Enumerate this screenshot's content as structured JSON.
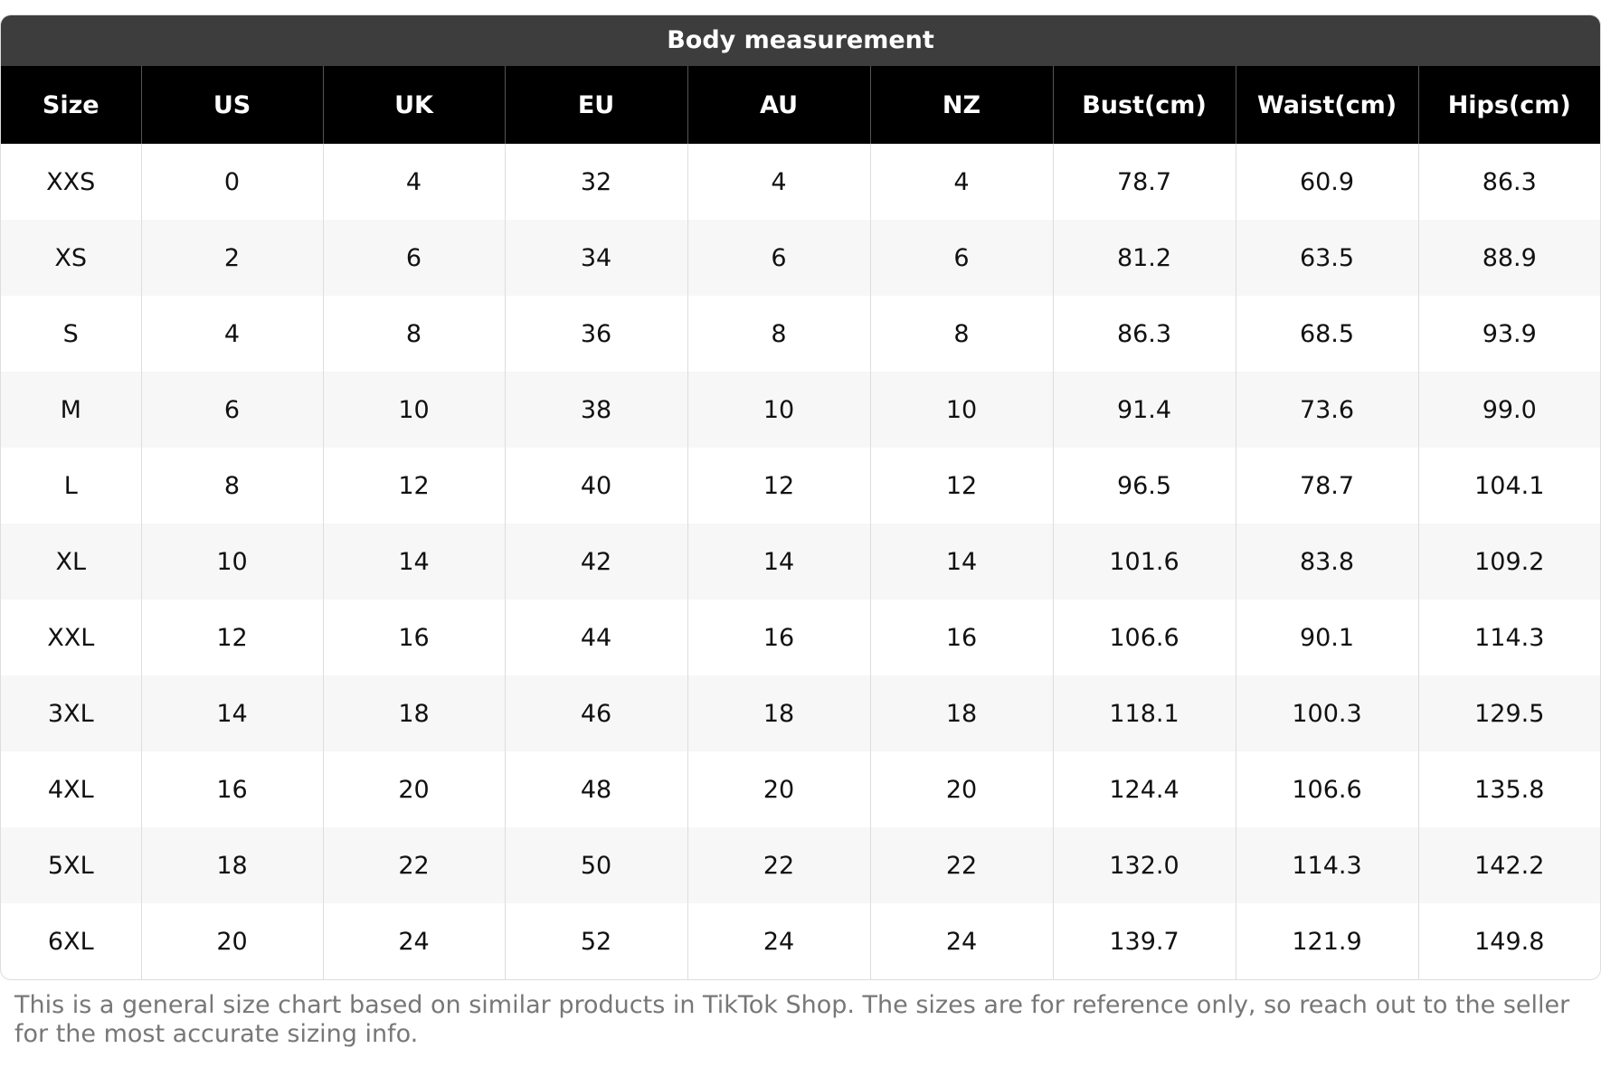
{
  "title": "Body measurement",
  "table": {
    "columns": [
      "Size",
      "US",
      "UK",
      "EU",
      "AU",
      "NZ",
      "Bust(cm)",
      "Waist(cm)",
      "Hips(cm)"
    ],
    "rows": [
      [
        "XXS",
        "0",
        "4",
        "32",
        "4",
        "4",
        "78.7",
        "60.9",
        "86.3"
      ],
      [
        "XS",
        "2",
        "6",
        "34",
        "6",
        "6",
        "81.2",
        "63.5",
        "88.9"
      ],
      [
        "S",
        "4",
        "8",
        "36",
        "8",
        "8",
        "86.3",
        "68.5",
        "93.9"
      ],
      [
        "M",
        "6",
        "10",
        "38",
        "10",
        "10",
        "91.4",
        "73.6",
        "99.0"
      ],
      [
        "L",
        "8",
        "12",
        "40",
        "12",
        "12",
        "96.5",
        "78.7",
        "104.1"
      ],
      [
        "XL",
        "10",
        "14",
        "42",
        "14",
        "14",
        "101.6",
        "83.8",
        "109.2"
      ],
      [
        "XXL",
        "12",
        "16",
        "44",
        "16",
        "16",
        "106.6",
        "90.1",
        "114.3"
      ],
      [
        "3XL",
        "14",
        "18",
        "46",
        "18",
        "18",
        "118.1",
        "100.3",
        "129.5"
      ],
      [
        "4XL",
        "16",
        "20",
        "48",
        "20",
        "20",
        "124.4",
        "106.6",
        "135.8"
      ],
      [
        "5XL",
        "18",
        "22",
        "50",
        "22",
        "22",
        "132.0",
        "114.3",
        "142.2"
      ],
      [
        "6XL",
        "20",
        "24",
        "52",
        "24",
        "24",
        "139.7",
        "121.9",
        "149.8"
      ]
    ]
  },
  "footer": "This is a general size chart based on similar products in TikTok Shop. The sizes are for reference only, so reach out to the seller for the most accurate sizing info."
}
